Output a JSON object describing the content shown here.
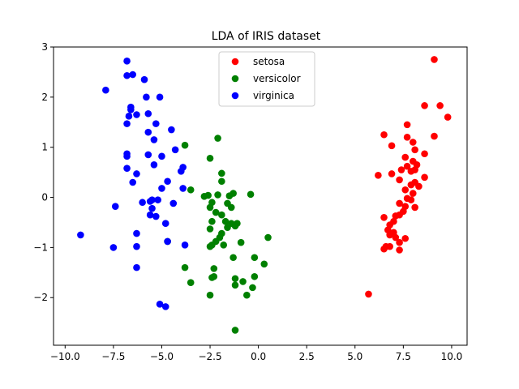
{
  "chart_data": {
    "type": "scatter",
    "title": "LDA of IRIS dataset",
    "xlabel": "",
    "ylabel": "",
    "xlim": [
      -10.6,
      10.8
    ],
    "ylim": [
      -2.95,
      3.0
    ],
    "xticks": [
      -10.0,
      -7.5,
      -5.0,
      -2.5,
      0.0,
      2.5,
      5.0,
      7.5,
      10.0
    ],
    "xtick_labels": [
      "−10.0",
      "−7.5",
      "−5.0",
      "−2.5",
      "0.0",
      "2.5",
      "5.0",
      "7.5",
      "10.0"
    ],
    "yticks": [
      -2,
      -1,
      0,
      1,
      2,
      3
    ],
    "ytick_labels": [
      "−2",
      "−1",
      "0",
      "1",
      "2",
      "3"
    ],
    "grid": false,
    "legend_position": "top-center",
    "series": [
      {
        "name": "setosa",
        "color": "#ff0000",
        "points": [
          [
            9.1,
            2.75
          ],
          [
            8.6,
            1.83
          ],
          [
            9.4,
            1.83
          ],
          [
            9.8,
            1.6
          ],
          [
            7.7,
            1.45
          ],
          [
            9.1,
            1.22
          ],
          [
            6.5,
            1.25
          ],
          [
            7.7,
            1.2
          ],
          [
            8.0,
            1.1
          ],
          [
            6.9,
            1.03
          ],
          [
            8.1,
            0.95
          ],
          [
            8.6,
            0.87
          ],
          [
            7.6,
            0.8
          ],
          [
            8.0,
            0.72
          ],
          [
            8.2,
            0.65
          ],
          [
            7.7,
            0.62
          ],
          [
            7.4,
            0.55
          ],
          [
            7.9,
            0.52
          ],
          [
            8.1,
            0.55
          ],
          [
            6.2,
            0.44
          ],
          [
            6.9,
            0.47
          ],
          [
            7.3,
            0.35
          ],
          [
            8.6,
            0.4
          ],
          [
            8.1,
            0.3
          ],
          [
            7.9,
            0.25
          ],
          [
            8.3,
            0.22
          ],
          [
            7.6,
            0.15
          ],
          [
            8.0,
            0.08
          ],
          [
            7.7,
            -0.02
          ],
          [
            7.9,
            -0.05
          ],
          [
            7.3,
            -0.12
          ],
          [
            7.6,
            -0.18
          ],
          [
            8.1,
            -0.2
          ],
          [
            7.5,
            -0.28
          ],
          [
            7.3,
            -0.35
          ],
          [
            7.1,
            -0.37
          ],
          [
            6.5,
            -0.4
          ],
          [
            7.0,
            -0.48
          ],
          [
            6.8,
            -0.55
          ],
          [
            6.7,
            -0.65
          ],
          [
            7.0,
            -0.7
          ],
          [
            6.8,
            -0.75
          ],
          [
            7.1,
            -0.8
          ],
          [
            7.6,
            -0.82
          ],
          [
            7.3,
            -0.9
          ],
          [
            6.6,
            -0.98
          ],
          [
            6.8,
            -0.98
          ],
          [
            6.5,
            -1.03
          ],
          [
            7.3,
            -1.05
          ],
          [
            5.7,
            -1.93
          ]
        ]
      },
      {
        "name": "versicolor",
        "color": "#008000",
        "points": [
          [
            -2.1,
            1.18
          ],
          [
            -3.8,
            1.04
          ],
          [
            -2.5,
            0.78
          ],
          [
            -1.9,
            0.48
          ],
          [
            -1.9,
            0.32
          ],
          [
            -3.5,
            0.15
          ],
          [
            -2.8,
            0.02
          ],
          [
            -2.6,
            0.04
          ],
          [
            -2.1,
            0.05
          ],
          [
            -1.3,
            0.08
          ],
          [
            -1.5,
            0.03
          ],
          [
            -0.4,
            0.06
          ],
          [
            -2.4,
            -0.1
          ],
          [
            -2.5,
            -0.2
          ],
          [
            -1.6,
            -0.12
          ],
          [
            -1.4,
            -0.2
          ],
          [
            -2.2,
            -0.3
          ],
          [
            -1.9,
            -0.35
          ],
          [
            -2.4,
            -0.48
          ],
          [
            -1.7,
            -0.48
          ],
          [
            -1.4,
            -0.52
          ],
          [
            -1.1,
            -0.52
          ],
          [
            -1.6,
            -0.6
          ],
          [
            -2.5,
            -0.63
          ],
          [
            -1.2,
            -0.57
          ],
          [
            -1.9,
            -0.72
          ],
          [
            -2.2,
            -0.88
          ],
          [
            -2.0,
            -0.8
          ],
          [
            -2.4,
            -0.95
          ],
          [
            -2.5,
            -0.98
          ],
          [
            -0.9,
            -0.9
          ],
          [
            0.5,
            -0.8
          ],
          [
            -1.8,
            -0.95
          ],
          [
            -1.3,
            -1.2
          ],
          [
            -0.2,
            -1.2
          ],
          [
            -3.8,
            -1.4
          ],
          [
            -2.3,
            -1.42
          ],
          [
            0.3,
            -1.33
          ],
          [
            -2.4,
            -1.6
          ],
          [
            -2.3,
            -1.58
          ],
          [
            -1.2,
            -1.62
          ],
          [
            -0.2,
            -1.58
          ],
          [
            -0.8,
            -1.68
          ],
          [
            -3.5,
            -1.7
          ],
          [
            -1.2,
            -1.75
          ],
          [
            -0.3,
            -1.8
          ],
          [
            -2.5,
            -1.95
          ],
          [
            -0.6,
            -1.95
          ],
          [
            -1.2,
            -2.65
          ],
          [
            -4.7,
            -0.88
          ]
        ]
      },
      {
        "name": "virginica",
        "color": "#0000ff",
        "points": [
          [
            -6.8,
            2.72
          ],
          [
            -6.8,
            2.43
          ],
          [
            -6.5,
            2.45
          ],
          [
            -5.9,
            2.35
          ],
          [
            -7.9,
            2.14
          ],
          [
            -5.8,
            2.0
          ],
          [
            -5.1,
            2.0
          ],
          [
            -6.6,
            1.8
          ],
          [
            -6.6,
            1.75
          ],
          [
            -6.3,
            1.65
          ],
          [
            -5.7,
            1.67
          ],
          [
            -6.7,
            1.62
          ],
          [
            -6.8,
            1.47
          ],
          [
            -5.3,
            1.47
          ],
          [
            -4.5,
            1.35
          ],
          [
            -5.7,
            1.3
          ],
          [
            -5.4,
            1.15
          ],
          [
            -6.8,
            0.82
          ],
          [
            -6.8,
            0.87
          ],
          [
            -5.7,
            0.85
          ],
          [
            -5.0,
            0.82
          ],
          [
            -4.3,
            0.95
          ],
          [
            -5.4,
            0.65
          ],
          [
            -6.8,
            0.58
          ],
          [
            -4.0,
            0.52
          ],
          [
            -3.9,
            0.6
          ],
          [
            -6.3,
            0.47
          ],
          [
            -4.7,
            0.32
          ],
          [
            -6.5,
            0.3
          ],
          [
            -5.0,
            0.18
          ],
          [
            -3.9,
            0.18
          ],
          [
            -4.4,
            -0.12
          ],
          [
            -5.5,
            -0.05
          ],
          [
            -5.2,
            -0.05
          ],
          [
            -5.6,
            -0.08
          ],
          [
            -6.0,
            -0.1
          ],
          [
            -5.5,
            -0.22
          ],
          [
            -7.4,
            -0.18
          ],
          [
            -5.6,
            -0.35
          ],
          [
            -5.3,
            -0.38
          ],
          [
            -4.8,
            -0.52
          ],
          [
            -6.3,
            -0.72
          ],
          [
            -4.7,
            -0.88
          ],
          [
            -3.8,
            -0.95
          ],
          [
            -9.2,
            -0.75
          ],
          [
            -7.5,
            -1.0
          ],
          [
            -6.3,
            -0.98
          ],
          [
            -6.3,
            -1.4
          ],
          [
            -5.1,
            -2.13
          ],
          [
            -4.8,
            -2.18
          ]
        ]
      }
    ]
  }
}
